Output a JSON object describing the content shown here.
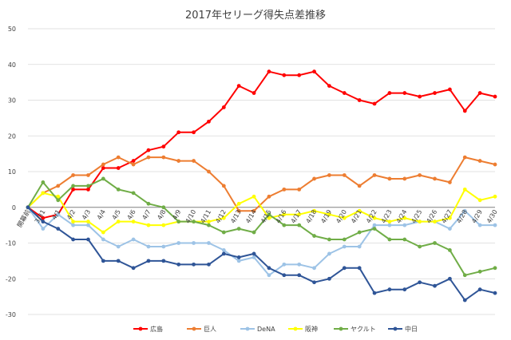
{
  "chart_data": {
    "type": "line",
    "title": "2017年セリーグ得失点差推移",
    "xlabel": "",
    "ylabel": "",
    "ylim": [
      -30,
      50
    ],
    "yticks": [
      -30,
      -20,
      -10,
      0,
      10,
      20,
      30,
      40,
      50
    ],
    "grid": true,
    "legend": "bottom",
    "categories": [
      "開幕前",
      "3/31",
      "4/1",
      "4/2",
      "4/3",
      "4/4",
      "4/5",
      "4/6",
      "4/7",
      "4/8",
      "4/9",
      "4/10",
      "4/11",
      "4/12",
      "4/13",
      "4/14",
      "4/15",
      "4/16",
      "4/17",
      "4/18",
      "4/19",
      "4/20",
      "4/21",
      "4/22",
      "4/23",
      "4/24",
      "4/25",
      "4/26",
      "4/27",
      "4/28",
      "4/29",
      "4/30"
    ],
    "series": [
      {
        "name": "広島",
        "color": "#ff0000",
        "values": [
          0,
          -3,
          -2,
          5,
          5,
          11,
          11,
          13,
          16,
          17,
          21,
          21,
          24,
          28,
          34,
          32,
          38,
          37,
          37,
          38,
          34,
          32,
          30,
          29,
          32,
          32,
          31,
          32,
          33,
          27,
          32,
          31
        ]
      },
      {
        "name": "巨人",
        "color": "#ed7d31",
        "values": [
          0,
          4,
          6,
          9,
          9,
          12,
          14,
          12,
          14,
          14,
          13,
          13,
          10,
          6,
          -1,
          -1,
          3,
          5,
          5,
          8,
          9,
          9,
          6,
          9,
          8,
          8,
          9,
          8,
          7,
          14,
          13,
          12
        ]
      },
      {
        "name": "DeNA",
        "color": "#9dc3e6",
        "values": [
          0,
          -6,
          -2,
          -5,
          -5,
          -9,
          -11,
          -9,
          -11,
          -11,
          -10,
          -10,
          -10,
          -12,
          -15,
          -14,
          -19,
          -16,
          -16,
          -17,
          -13,
          -11,
          -11,
          -5,
          -5,
          -5,
          -4,
          -4,
          -6,
          -1,
          -5,
          -5
        ]
      },
      {
        "name": "阪神",
        "color": "#ffff00",
        "values": [
          0,
          4,
          3,
          -4,
          -4,
          -7,
          -4,
          -4,
          -5,
          -5,
          -4,
          -4,
          -4,
          -3,
          1,
          3,
          -3,
          -2,
          -2,
          -1,
          -2,
          -3,
          -1,
          -3,
          -4,
          -3,
          -4,
          -4,
          -3,
          5,
          2,
          3
        ]
      },
      {
        "name": "ヤクルト",
        "color": "#70ad47",
        "values": [
          0,
          7,
          2,
          6,
          6,
          8,
          5,
          4,
          1,
          0,
          -4,
          -4,
          -5,
          -7,
          -6,
          -7,
          -2,
          -5,
          -5,
          -8,
          -9,
          -9,
          -7,
          -6,
          -9,
          -9,
          -11,
          -10,
          -12,
          -19,
          -18,
          -17
        ]
      },
      {
        "name": "中日",
        "color": "#2f5597",
        "values": [
          0,
          -4,
          -6,
          -9,
          -9,
          -15,
          -15,
          -17,
          -15,
          -15,
          -16,
          -16,
          -16,
          -13,
          -14,
          -13,
          -17,
          -19,
          -19,
          -21,
          -20,
          -17,
          -17,
          -24,
          -23,
          -23,
          -21,
          -22,
          -20,
          -26,
          -23,
          -24
        ]
      }
    ]
  }
}
